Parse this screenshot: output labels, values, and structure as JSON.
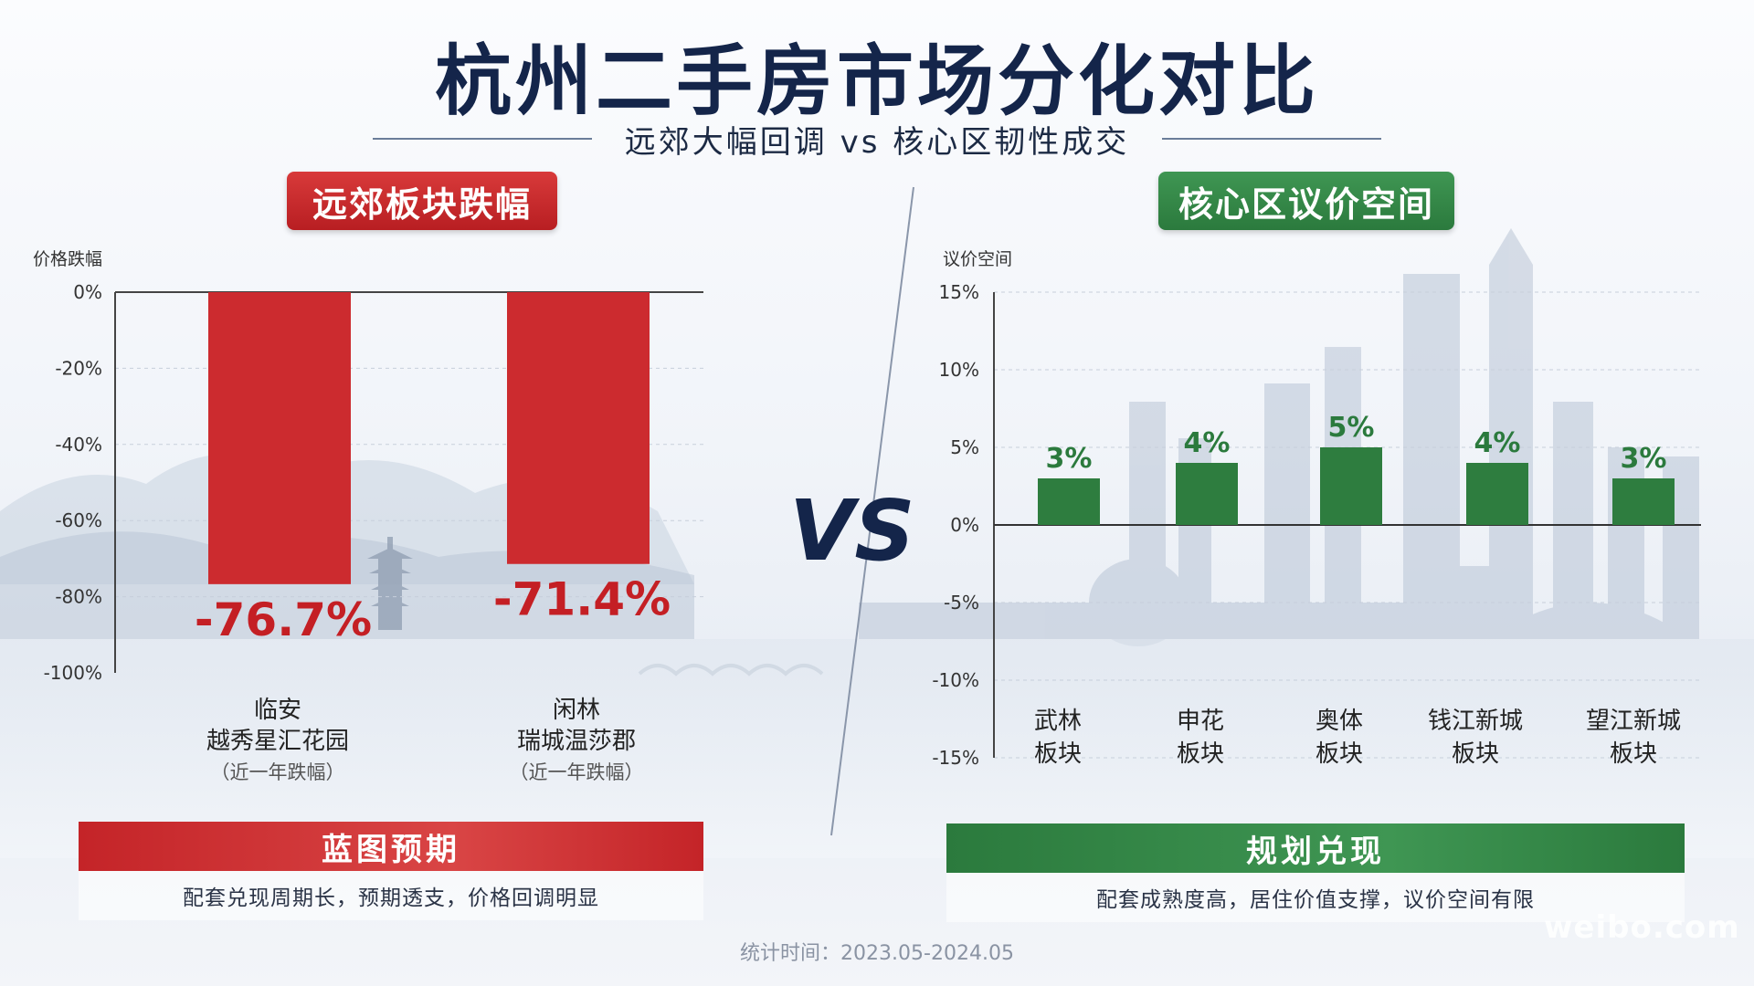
{
  "title": "杭州二手房市场分化对比",
  "subtitle": "远郊大幅回调 vs 核心区韧性成交",
  "vs_label": "VS",
  "colors": {
    "red": "#cc2b2f",
    "green": "#2e7d3f",
    "navy": "#14254a"
  },
  "chart_data": [
    {
      "type": "bar",
      "title": "远郊板块跌幅",
      "ylabel": "价格跌幅",
      "ylim": [
        -100,
        0
      ],
      "yticks": [
        "0%",
        "-20%",
        "-40%",
        "-60%",
        "-80%",
        "-100%"
      ],
      "categories": [
        {
          "name": "临安",
          "project": "越秀星汇花园",
          "note": "（近一年跌幅）"
        },
        {
          "name": "闲林",
          "project": "瑞城温莎郡",
          "note": "（近一年跌幅）"
        }
      ],
      "values": [
        -76.7,
        -71.4
      ],
      "value_labels": [
        "-76.7%",
        "-71.4%"
      ],
      "grid": true
    },
    {
      "type": "bar",
      "title": "核心区议价空间",
      "ylabel": "议价空间",
      "ylim": [
        -15,
        15
      ],
      "yticks": [
        "15%",
        "10%",
        "5%",
        "0%",
        "-5%",
        "-10%",
        "-15%"
      ],
      "categories": [
        {
          "name": "武林",
          "suffix": "板块"
        },
        {
          "name": "申花",
          "suffix": "板块"
        },
        {
          "name": "奥体",
          "suffix": "板块"
        },
        {
          "name": "钱江新城",
          "suffix": "板块"
        },
        {
          "name": "望江新城",
          "suffix": "板块"
        }
      ],
      "values": [
        3,
        4,
        5,
        4,
        3
      ],
      "value_labels": [
        "3%",
        "4%",
        "5%",
        "4%",
        "3%"
      ],
      "grid": true
    }
  ],
  "left_footer": {
    "heading": "蓝图预期",
    "desc": "配套兑现周期长，预期透支，价格回调明显"
  },
  "right_footer": {
    "heading": "规划兑现",
    "desc": "配套成熟度高，居住价值支撑，议价空间有限"
  },
  "footnote": "统计时间：2023.05-2024.05",
  "watermark": "weibo.com"
}
